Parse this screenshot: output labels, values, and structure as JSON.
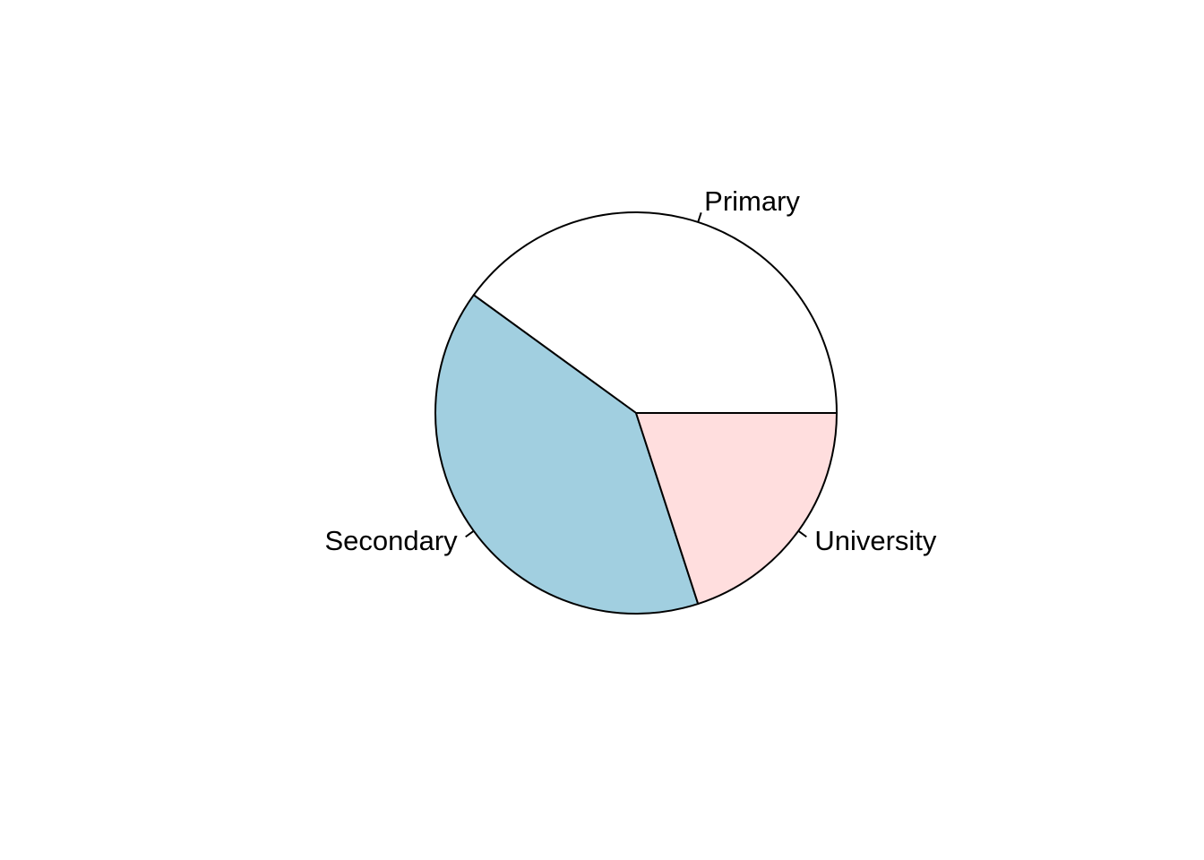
{
  "chart_data": {
    "type": "pie",
    "title": "",
    "start_angle_deg": 0,
    "direction": "counterclockwise",
    "slices": [
      {
        "label": "Primary",
        "value": 40,
        "color": "#ffffff"
      },
      {
        "label": "Secondary",
        "value": 40,
        "color": "#a1cfe0"
      },
      {
        "label": "University",
        "value": 20,
        "color": "#ffdede"
      }
    ]
  }
}
